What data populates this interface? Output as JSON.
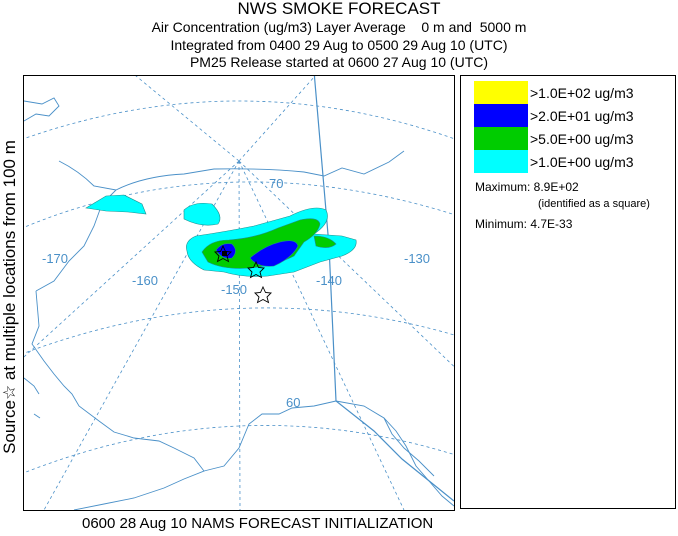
{
  "header": {
    "title": "NWS SMOKE FORECAST",
    "line1": "Air Concentration (ug/m3) Layer Average    0 m and  5000 m",
    "line2": "Integrated from 0400 29 Aug to 0500 29 Aug 10 (UTC)",
    "line3": "PM25 Release started at 0600 27 Aug 10 (UTC)"
  },
  "side_label": "Source☆ at multiple locations   from   100 m",
  "map": {
    "latitude_labels": [
      "70",
      "60"
    ],
    "longitude_labels": [
      "-170",
      "-160",
      "-150",
      "-140",
      "-130"
    ],
    "source_icon": "star-icon",
    "grid_color": "#4a90c8",
    "coast_color": "#4a90c8"
  },
  "legend": {
    "items": [
      {
        "label": ">1.0E+02 ug/m3",
        "color": "#ffff00"
      },
      {
        "label": ">2.0E+01 ug/m3",
        "color": "#0000ff"
      },
      {
        "label": ">5.0E+00 ug/m3",
        "color": "#00cc00"
      },
      {
        "label": ">1.0E+00 ug/m3",
        "color": "#00ffff"
      }
    ],
    "maximum_label": "Maximum: 8.9E+02",
    "maximum_note": "(identified as a square)",
    "minimum_label": "Minimum: 4.7E-33"
  },
  "footer": "0600 28 Aug 10 NAMS FORECAST INITIALIZATION"
}
